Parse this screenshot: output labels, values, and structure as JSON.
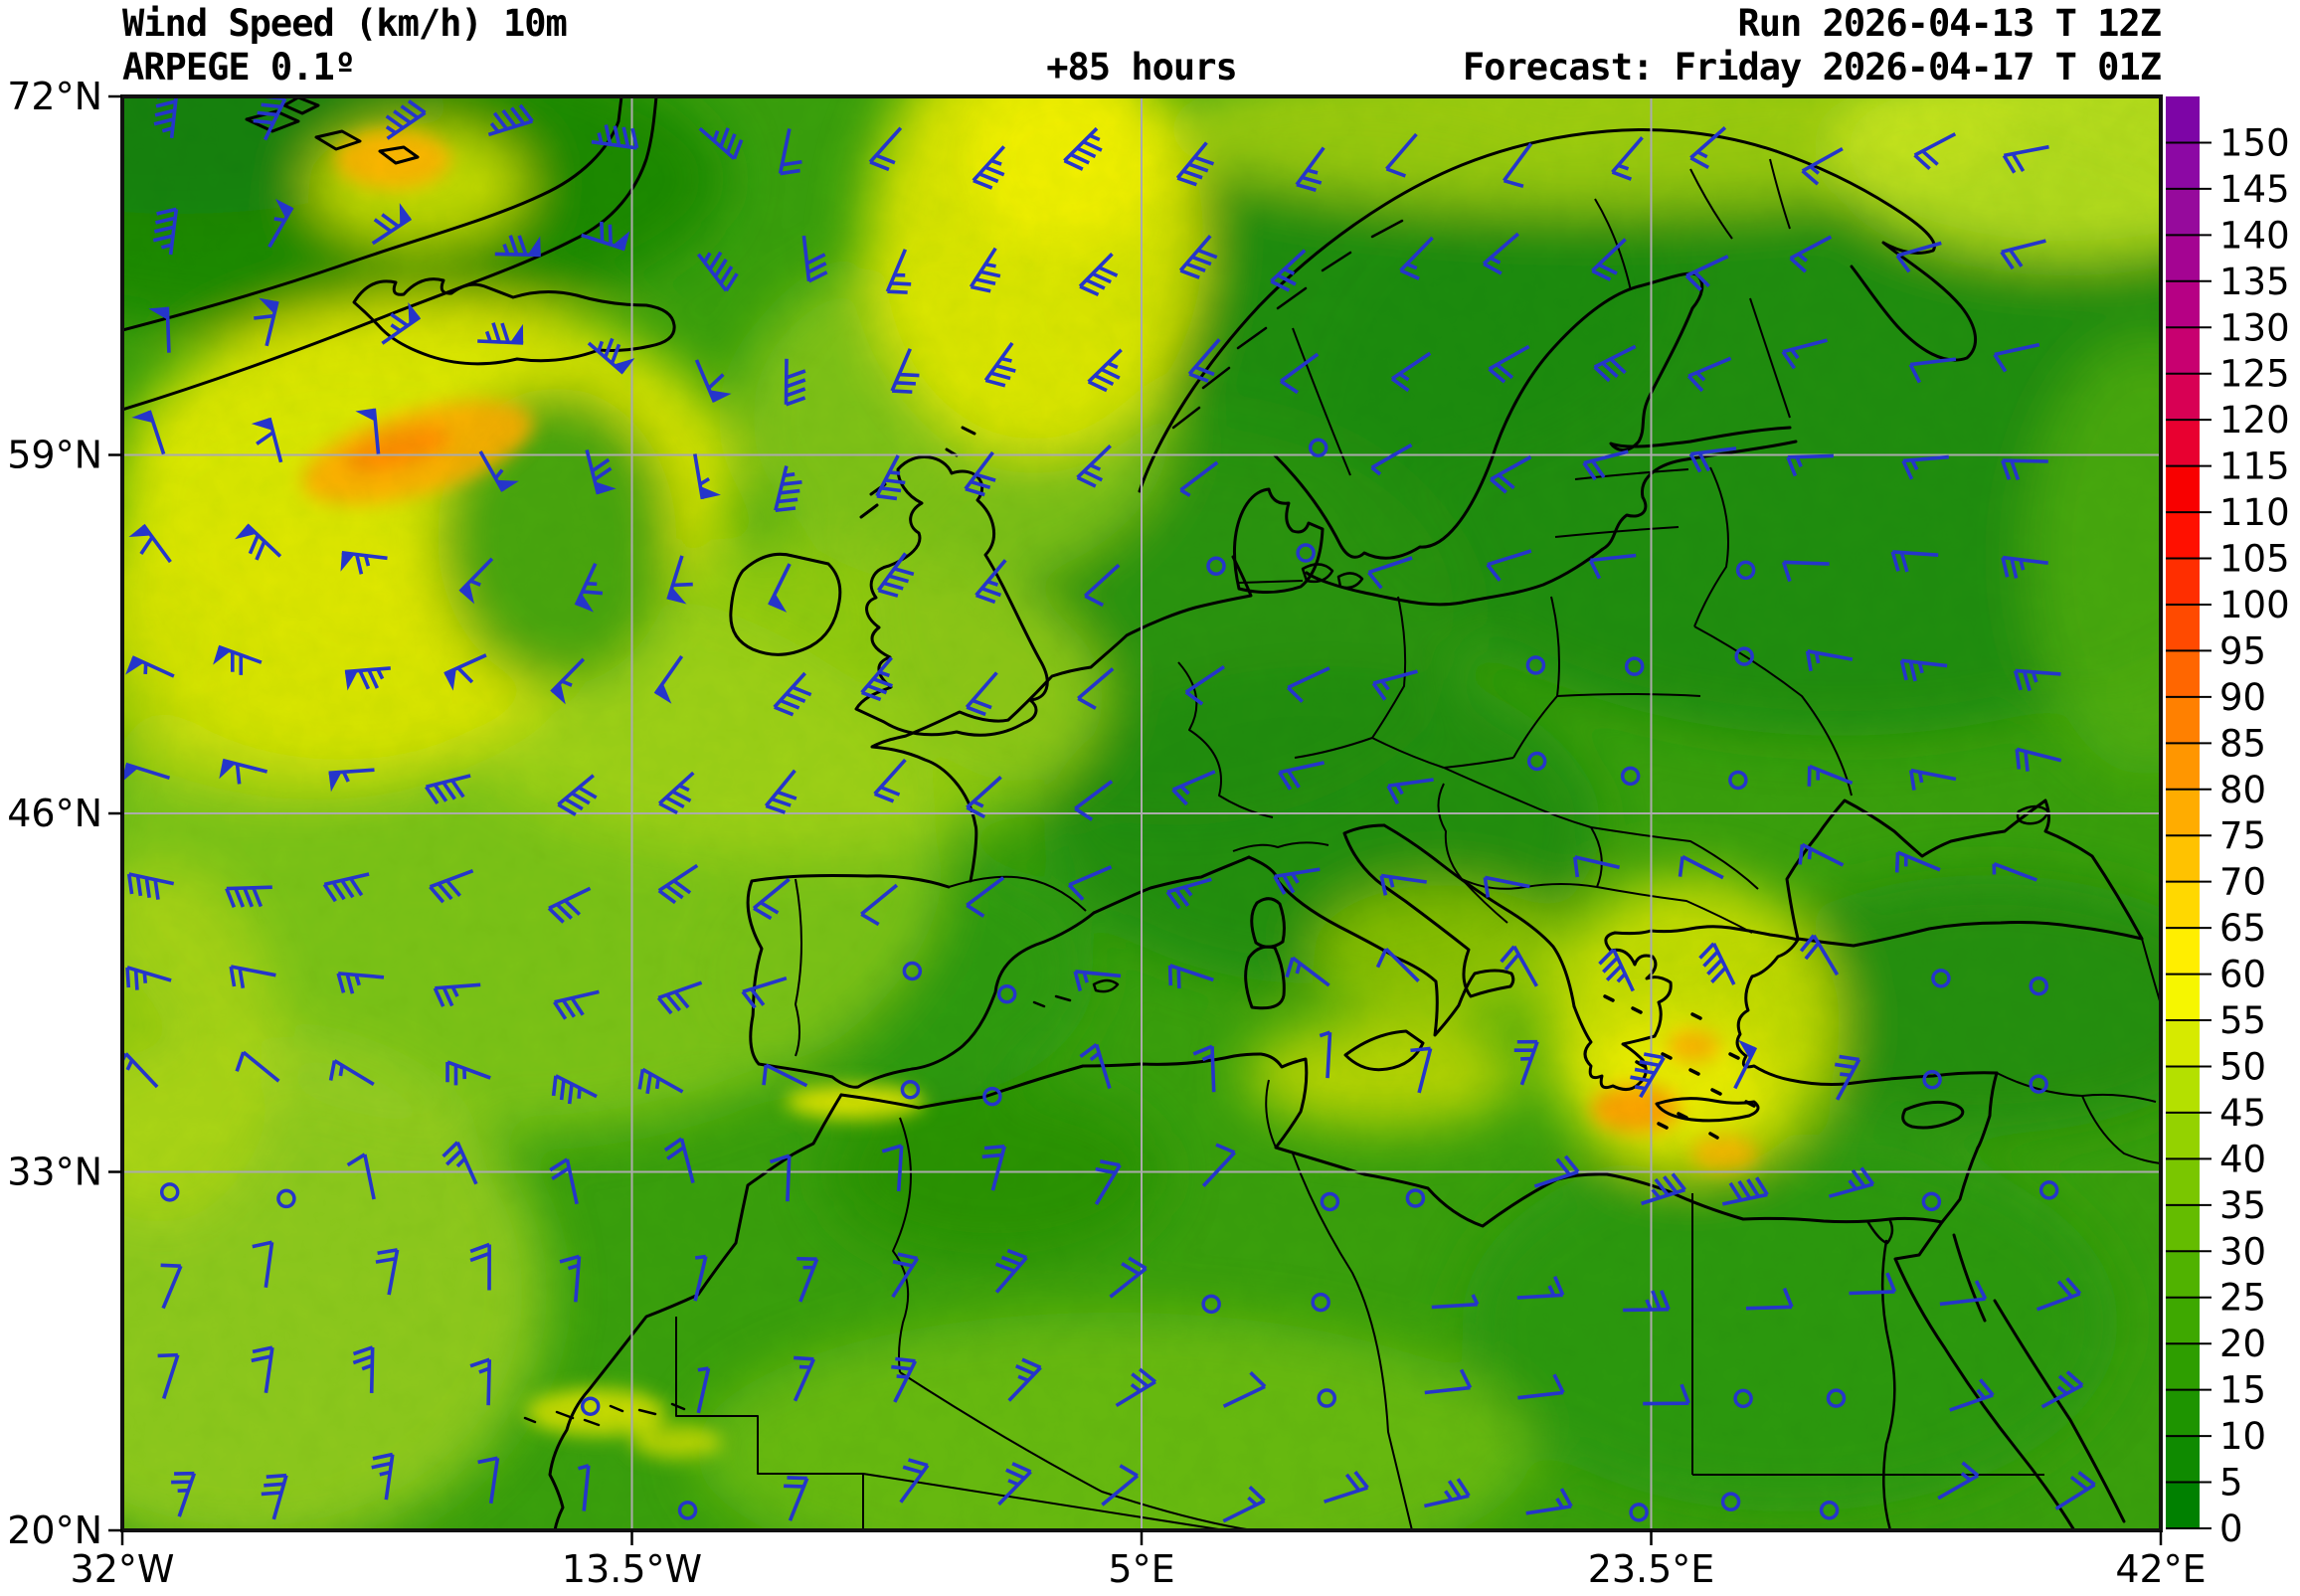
{
  "header": {
    "title_line1": "Wind Speed (km/h) 10m",
    "title_line2": "ARPEGE 0.1º",
    "hours_label": "+85 hours",
    "run_label": "Run 2026-04-13 T 12Z",
    "forecast_label": "Forecast: Friday 2026-04-17 T 01Z"
  },
  "axes": {
    "lat_ticks": [
      {
        "label": "72°N",
        "deg": 72
      },
      {
        "label": "59°N",
        "deg": 59
      },
      {
        "label": "46°N",
        "deg": 46
      },
      {
        "label": "33°N",
        "deg": 33
      },
      {
        "label": "20°N",
        "deg": 20
      }
    ],
    "lon_ticks": [
      {
        "label": "32°W",
        "deg": -32
      },
      {
        "label": "13.5°W",
        "deg": -13.5
      },
      {
        "label": "5°E",
        "deg": 5
      },
      {
        "label": "23.5°E",
        "deg": 23.5
      },
      {
        "label": "42°E",
        "deg": 42
      }
    ]
  },
  "colorbar": {
    "unit": "km/h",
    "min": 0,
    "max": 155,
    "tick_step": 5,
    "tick_values": [
      0,
      5,
      10,
      15,
      20,
      25,
      30,
      35,
      40,
      45,
      50,
      55,
      60,
      65,
      70,
      75,
      80,
      85,
      90,
      95,
      100,
      105,
      110,
      115,
      120,
      125,
      130,
      135,
      140,
      145,
      150
    ],
    "segment_colors": [
      "#008000",
      "#0f8a00",
      "#1e9400",
      "#2e9e00",
      "#3ea800",
      "#50b200",
      "#64bc00",
      "#7ac600",
      "#94d200",
      "#b4e000",
      "#d6ea00",
      "#f6f600",
      "#ffee00",
      "#ffd800",
      "#ffc200",
      "#ffac00",
      "#ff9600",
      "#ff8000",
      "#ff6600",
      "#ff4a00",
      "#ff2e00",
      "#ff1000",
      "#f80000",
      "#e80030",
      "#d80054",
      "#c80070",
      "#b60084",
      "#a40492",
      "#960a9c",
      "#8c08a4",
      "#7d05a6"
    ]
  },
  "wind_barbs": {
    "color": "#2535cb",
    "calm_symbol": "circle"
  },
  "map_colors": {
    "base_green": "#3aa00c",
    "dark_green": "#1d8a06",
    "light_green": "#84c61a",
    "yellow": "#e6ea00",
    "orange": "#ff9c00",
    "coastline": "#000000",
    "gridline": "#ababab"
  }
}
